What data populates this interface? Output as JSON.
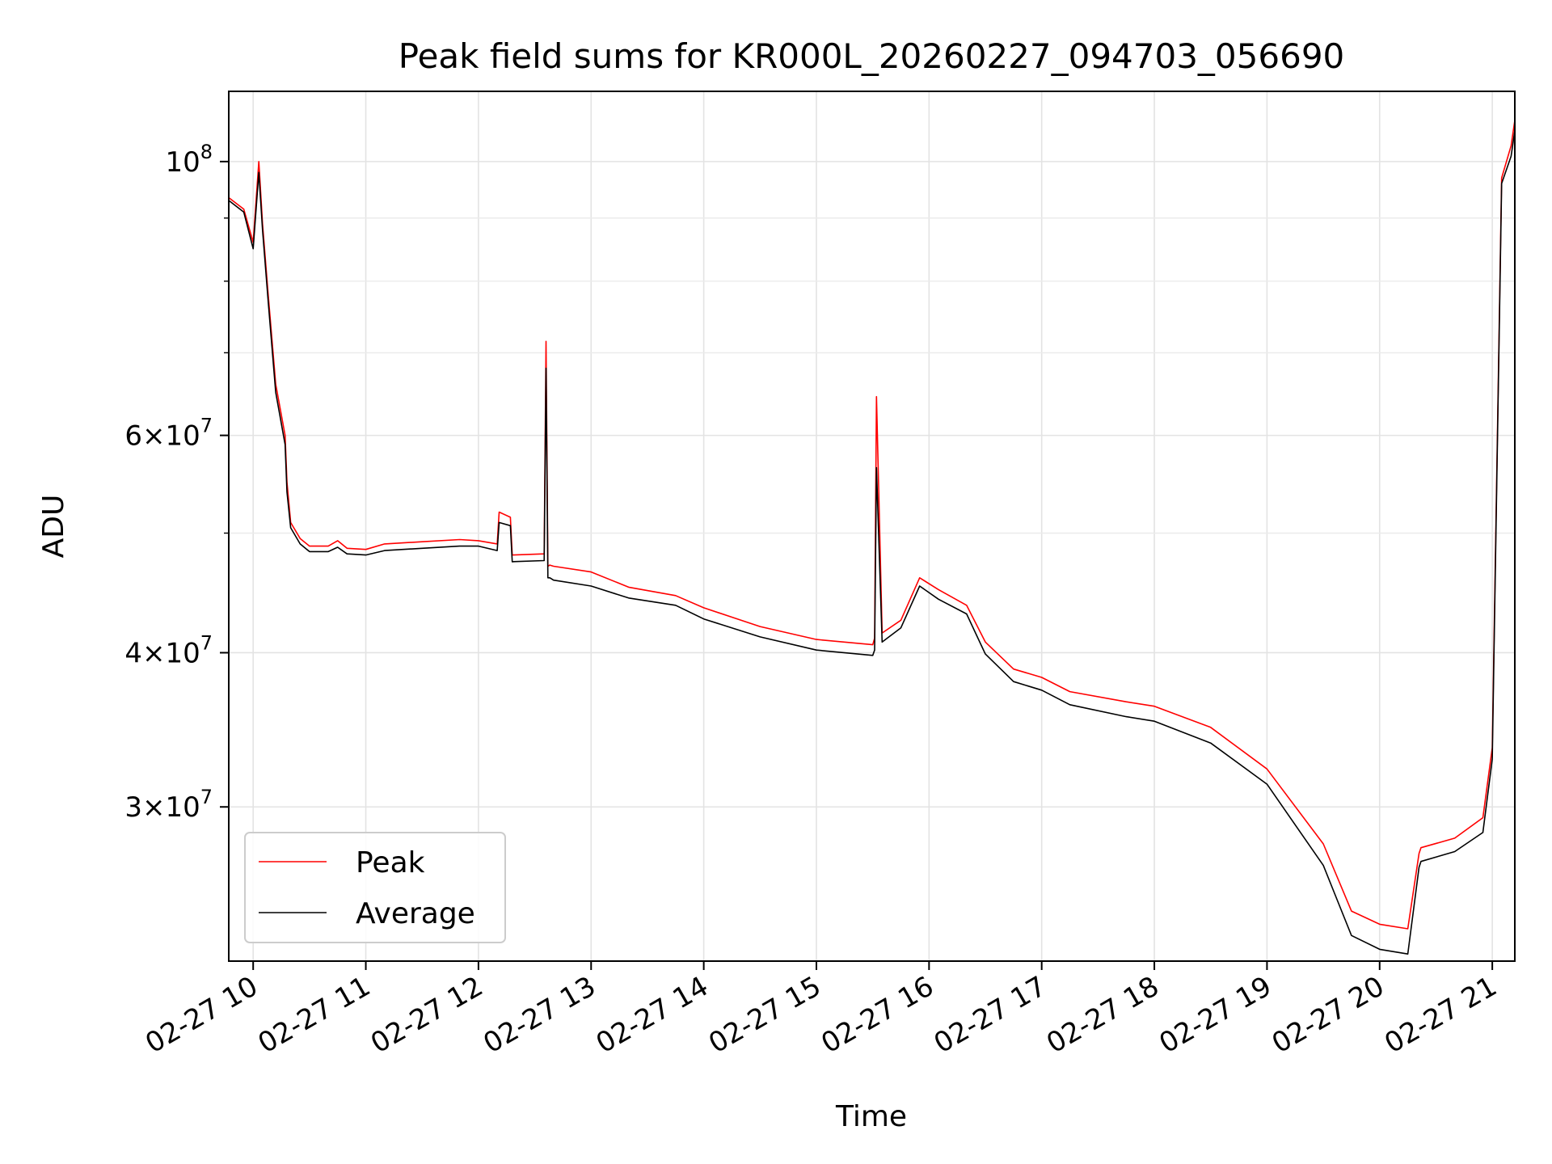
{
  "chart_data": {
    "type": "line",
    "title": "Peak field sums for KR000L_20260227_094703_056690",
    "xlabel": "Time",
    "ylabel": "ADU",
    "yscale": "log",
    "ylim": [
      22500000,
      114000000
    ],
    "xlim": [
      "2026-02-27 09:47",
      "2026-02-27 21:12"
    ],
    "grid": true,
    "legend_position": "lower-left",
    "x_tick_labels": [
      "02-27 10",
      "02-27 11",
      "02-27 12",
      "02-27 13",
      "02-27 14",
      "02-27 15",
      "02-27 16",
      "02-27 17",
      "02-27 18",
      "02-27 19",
      "02-27 20",
      "02-27 21"
    ],
    "x_tick_times": [
      "2026-02-27 10:00",
      "2026-02-27 11:00",
      "2026-02-27 12:00",
      "2026-02-27 13:00",
      "2026-02-27 14:00",
      "2026-02-27 15:00",
      "2026-02-27 16:00",
      "2026-02-27 17:00",
      "2026-02-27 18:00",
      "2026-02-27 19:00",
      "2026-02-27 20:00",
      "2026-02-27 21:00"
    ],
    "y_ticks": [
      {
        "value": 100000000,
        "mantissa": "",
        "exponent": "8"
      },
      {
        "value": 60000000,
        "mantissa": "6",
        "exponent": "7"
      },
      {
        "value": 40000000,
        "mantissa": "4",
        "exponent": "7"
      },
      {
        "value": 30000000,
        "mantissa": "3",
        "exponent": "7"
      }
    ],
    "y_minor_ticks": [
      50000000,
      70000000,
      80000000,
      90000000
    ],
    "series": [
      {
        "name": "Peak",
        "color": "#ff0000",
        "x": [
          "2026-02-27 09:47",
          "2026-02-27 09:55",
          "2026-02-27 10:00",
          "2026-02-27 10:03",
          "2026-02-27 10:05",
          "2026-02-27 10:08",
          "2026-02-27 10:12",
          "2026-02-27 10:17",
          "2026-02-27 10:18",
          "2026-02-27 10:20",
          "2026-02-27 10:25",
          "2026-02-27 10:30",
          "2026-02-27 10:40",
          "2026-02-27 10:45",
          "2026-02-27 10:50",
          "2026-02-27 11:00",
          "2026-02-27 11:10",
          "2026-02-27 11:30",
          "2026-02-27 11:50",
          "2026-02-27 12:00",
          "2026-02-27 12:10",
          "2026-02-27 12:11",
          "2026-02-27 12:17",
          "2026-02-27 12:18",
          "2026-02-27 12:35",
          "2026-02-27 12:36",
          "2026-02-27 12:37",
          "2026-02-27 12:38",
          "2026-02-27 12:40",
          "2026-02-27 13:00",
          "2026-02-27 13:20",
          "2026-02-27 13:45",
          "2026-02-27 14:00",
          "2026-02-27 14:30",
          "2026-02-27 15:00",
          "2026-02-27 15:30",
          "2026-02-27 15:31",
          "2026-02-27 15:32",
          "2026-02-27 15:35",
          "2026-02-27 15:45",
          "2026-02-27 15:55",
          "2026-02-27 16:05",
          "2026-02-27 16:20",
          "2026-02-27 16:30",
          "2026-02-27 16:45",
          "2026-02-27 17:00",
          "2026-02-27 17:15",
          "2026-02-27 17:45",
          "2026-02-27 18:00",
          "2026-02-27 18:30",
          "2026-02-27 19:00",
          "2026-02-27 19:30",
          "2026-02-27 19:45",
          "2026-02-27 20:00",
          "2026-02-27 20:15",
          "2026-02-27 20:21",
          "2026-02-27 20:22",
          "2026-02-27 20:40",
          "2026-02-27 20:55",
          "2026-02-27 21:00",
          "2026-02-27 21:05",
          "2026-02-27 21:10",
          "2026-02-27 21:12"
        ],
        "values": [
          93500000,
          91500000,
          86000000,
          100000000,
          89000000,
          78000000,
          66000000,
          60000000,
          55000000,
          51000000,
          49500000,
          48800000,
          48800000,
          49300000,
          48600000,
          48500000,
          49000000,
          49200000,
          49400000,
          49300000,
          49000000,
          52000000,
          51500000,
          48000000,
          48100000,
          71500000,
          47000000,
          47100000,
          47000000,
          46500000,
          45200000,
          44500000,
          43500000,
          42000000,
          41000000,
          40600000,
          41100000,
          64500000,
          41500000,
          42500000,
          46000000,
          45000000,
          43700000,
          40800000,
          38800000,
          38200000,
          37200000,
          36500000,
          36200000,
          34800000,
          32200000,
          28000000,
          24700000,
          24100000,
          23900000,
          27500000,
          27800000,
          28300000,
          29400000,
          33500000,
          97000000,
          103000000,
          108000000
        ]
      },
      {
        "name": "Average",
        "color": "#000000",
        "x": [
          "2026-02-27 09:47",
          "2026-02-27 09:55",
          "2026-02-27 10:00",
          "2026-02-27 10:03",
          "2026-02-27 10:05",
          "2026-02-27 10:08",
          "2026-02-27 10:12",
          "2026-02-27 10:17",
          "2026-02-27 10:18",
          "2026-02-27 10:20",
          "2026-02-27 10:25",
          "2026-02-27 10:30",
          "2026-02-27 10:40",
          "2026-02-27 10:45",
          "2026-02-27 10:50",
          "2026-02-27 11:00",
          "2026-02-27 11:10",
          "2026-02-27 11:30",
          "2026-02-27 11:50",
          "2026-02-27 12:00",
          "2026-02-27 12:10",
          "2026-02-27 12:11",
          "2026-02-27 12:17",
          "2026-02-27 12:18",
          "2026-02-27 12:35",
          "2026-02-27 12:36",
          "2026-02-27 12:37",
          "2026-02-27 12:38",
          "2026-02-27 12:40",
          "2026-02-27 13:00",
          "2026-02-27 13:20",
          "2026-02-27 13:45",
          "2026-02-27 14:00",
          "2026-02-27 14:30",
          "2026-02-27 15:00",
          "2026-02-27 15:30",
          "2026-02-27 15:31",
          "2026-02-27 15:32",
          "2026-02-27 15:35",
          "2026-02-27 15:45",
          "2026-02-27 15:55",
          "2026-02-27 16:05",
          "2026-02-27 16:20",
          "2026-02-27 16:30",
          "2026-02-27 16:45",
          "2026-02-27 17:00",
          "2026-02-27 17:15",
          "2026-02-27 17:45",
          "2026-02-27 18:00",
          "2026-02-27 18:30",
          "2026-02-27 19:00",
          "2026-02-27 19:30",
          "2026-02-27 19:45",
          "2026-02-27 20:00",
          "2026-02-27 20:15",
          "2026-02-27 20:21",
          "2026-02-27 20:22",
          "2026-02-27 20:40",
          "2026-02-27 20:55",
          "2026-02-27 21:00",
          "2026-02-27 21:05",
          "2026-02-27 21:10",
          "2026-02-27 21:12"
        ],
        "values": [
          93000000,
          91000000,
          85000000,
          98000000,
          88000000,
          77000000,
          65000000,
          59000000,
          54000000,
          50500000,
          49000000,
          48300000,
          48300000,
          48700000,
          48100000,
          48000000,
          48400000,
          48600000,
          48800000,
          48800000,
          48400000,
          51000000,
          50700000,
          47400000,
          47500000,
          68000000,
          46000000,
          46000000,
          45800000,
          45300000,
          44300000,
          43700000,
          42600000,
          41200000,
          40200000,
          39800000,
          40200000,
          56500000,
          40800000,
          41900000,
          45300000,
          44200000,
          43000000,
          39900000,
          37900000,
          37300000,
          36300000,
          35500000,
          35200000,
          33800000,
          31300000,
          26900000,
          23600000,
          23000000,
          22800000,
          26800000,
          27100000,
          27600000,
          28600000,
          32800000,
          96000000,
          101000000,
          106000000
        ]
      }
    ]
  }
}
